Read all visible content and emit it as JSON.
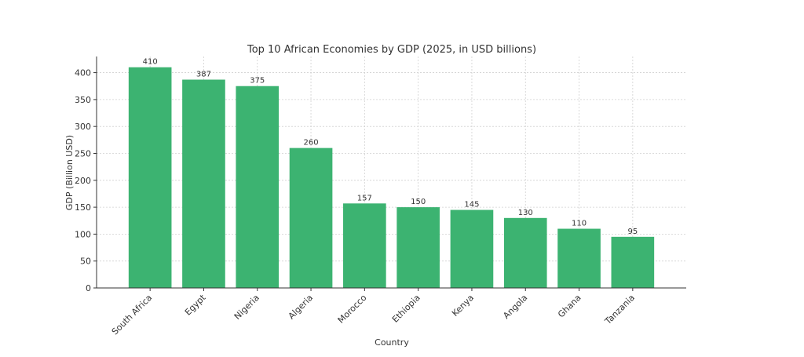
{
  "chart_data": {
    "type": "bar",
    "title": "Top 10 African Economies by GDP (2025, in USD billions)",
    "xlabel": "Country",
    "ylabel": "GDP (Billion USD)",
    "categories": [
      "South Africa",
      "Egypt",
      "Nigeria",
      "Algeria",
      "Morocco",
      "Ethiopia",
      "Kenya",
      "Angola",
      "Ghana",
      "Tanzania"
    ],
    "values": [
      410,
      387,
      375,
      260,
      157,
      150,
      145,
      130,
      110,
      95
    ],
    "yticks": [
      0,
      50,
      100,
      150,
      200,
      250,
      300,
      350,
      400
    ],
    "ylim": [
      0,
      430
    ],
    "grid": true,
    "bar_color": "#3cb371"
  }
}
